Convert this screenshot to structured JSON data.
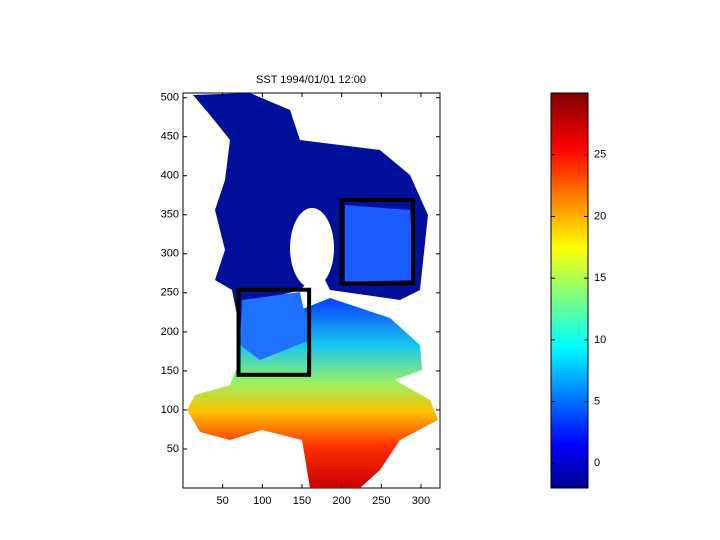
{
  "chart_data": {
    "type": "map",
    "title": "SST 1994/01/01 12:00",
    "xlim": [
      0,
      324
    ],
    "ylim": [
      0,
      506
    ],
    "xticks": [
      50,
      100,
      150,
      200,
      250,
      300
    ],
    "yticks": [
      50,
      100,
      150,
      200,
      250,
      300,
      350,
      400,
      450,
      500
    ],
    "boxes": [
      {
        "x": [
          70,
          159
        ],
        "y": [
          145,
          254
        ]
      },
      {
        "x": [
          200,
          290
        ],
        "y": [
          262,
          369
        ]
      }
    ],
    "colorbar": {
      "clim": [
        -2,
        30
      ],
      "ticks": [
        0,
        5,
        10,
        15,
        20,
        25
      ],
      "colormap": "jet"
    }
  }
}
